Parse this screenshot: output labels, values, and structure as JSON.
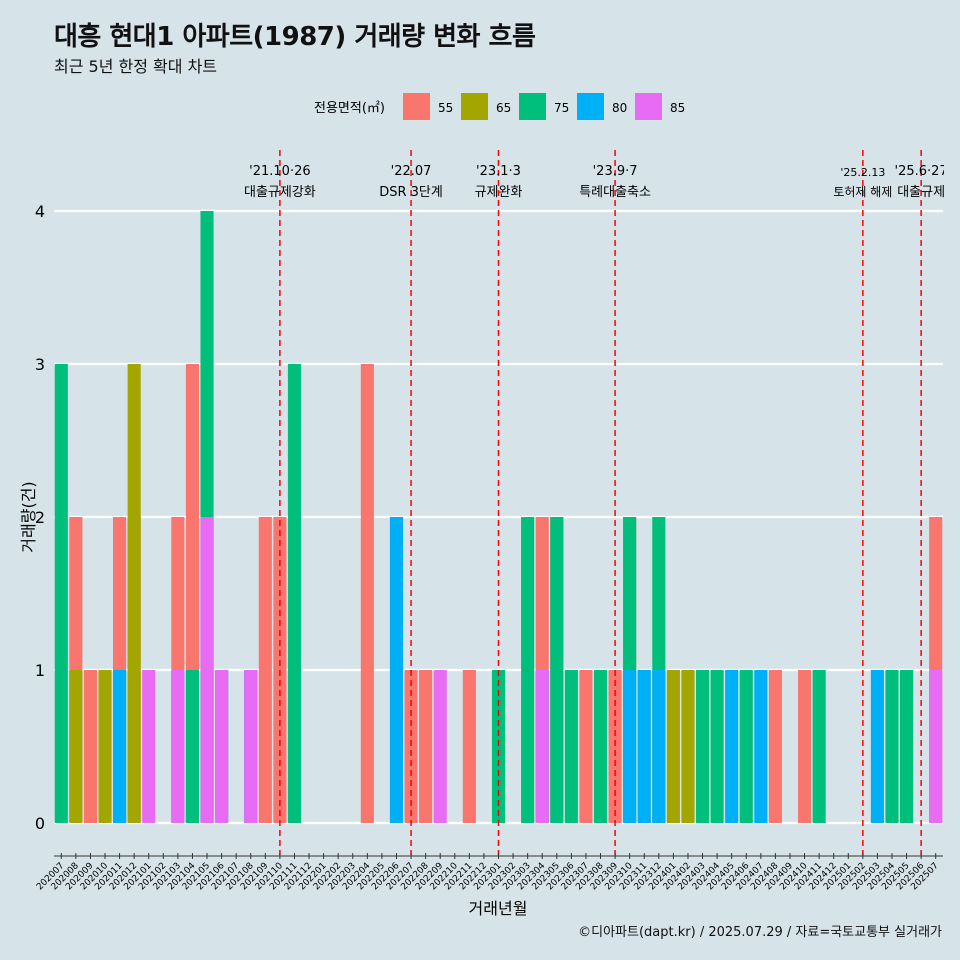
{
  "title": "대흥 현대1 아파트(1987) 거래량 변화 흐름",
  "subtitle": "최근 5년 한정 확대 차트",
  "caption": "©디아파트(dapt.kr) / 2025.07.29 / 자료=국토교통부 실거래가",
  "chart_data": {
    "type": "bar",
    "xlabel": "거래년월",
    "ylabel": "거래량(건)",
    "ylim": [
      0,
      4
    ],
    "yticks": [
      0,
      1,
      2,
      3,
      4
    ],
    "legend": {
      "title": "전용면적(㎡)",
      "position": "top",
      "entries": [
        {
          "name": "55",
          "color": "#f8766d"
        },
        {
          "name": "65",
          "color": "#a3a500"
        },
        {
          "name": "75",
          "color": "#00bf7d"
        },
        {
          "name": "80",
          "color": "#00b0f6"
        },
        {
          "name": "85",
          "color": "#e76bf3"
        }
      ]
    },
    "categories": [
      "202007",
      "202008",
      "202009",
      "202010",
      "202011",
      "202012",
      "202101",
      "202102",
      "202103",
      "202104",
      "202105",
      "202106",
      "202107",
      "202108",
      "202109",
      "202110",
      "202111",
      "202112",
      "202201",
      "202202",
      "202203",
      "202204",
      "202205",
      "202206",
      "202207",
      "202208",
      "202209",
      "202210",
      "202211",
      "202212",
      "202301",
      "202302",
      "202303",
      "202304",
      "202305",
      "202306",
      "202307",
      "202308",
      "202309",
      "202310",
      "202311",
      "202312",
      "202401",
      "202402",
      "202403",
      "202404",
      "202405",
      "202406",
      "202407",
      "202408",
      "202409",
      "202410",
      "202411",
      "202412",
      "202501",
      "202502",
      "202503",
      "202504",
      "202505",
      "202506",
      "202507"
    ],
    "bars": [
      {
        "x": "202007",
        "size": "75",
        "value": 3
      },
      {
        "x": "202008",
        "size": "55",
        "value": 2
      },
      {
        "x": "202008",
        "size": "65",
        "value": 1
      },
      {
        "x": "202009",
        "size": "55",
        "value": 1
      },
      {
        "x": "202010",
        "size": "65",
        "value": 1
      },
      {
        "x": "202011",
        "size": "55",
        "value": 2
      },
      {
        "x": "202011",
        "size": "75",
        "value": 1
      },
      {
        "x": "202011",
        "size": "80",
        "value": 1
      },
      {
        "x": "202012",
        "size": "55",
        "value": 2
      },
      {
        "x": "202012",
        "size": "65",
        "value": 3
      },
      {
        "x": "202101",
        "size": "85",
        "value": 1
      },
      {
        "x": "202103",
        "size": "55",
        "value": 2
      },
      {
        "x": "202103",
        "size": "80",
        "value": 1
      },
      {
        "x": "202103",
        "size": "85",
        "value": 1
      },
      {
        "x": "202104",
        "size": "55",
        "value": 3
      },
      {
        "x": "202104",
        "size": "65",
        "value": 1
      },
      {
        "x": "202104",
        "size": "75",
        "value": 1
      },
      {
        "x": "202105",
        "size": "65",
        "value": 1
      },
      {
        "x": "202105",
        "size": "75",
        "value": 4
      },
      {
        "x": "202105",
        "size": "80",
        "value": 2
      },
      {
        "x": "202105",
        "size": "85",
        "value": 2
      },
      {
        "x": "202106",
        "size": "65",
        "value": 1
      },
      {
        "x": "202106",
        "size": "80",
        "value": 1
      },
      {
        "x": "202106",
        "size": "85",
        "value": 1
      },
      {
        "x": "202108",
        "size": "75",
        "value": 1
      },
      {
        "x": "202108",
        "size": "80",
        "value": 1
      },
      {
        "x": "202108",
        "size": "85",
        "value": 1
      },
      {
        "x": "202109",
        "size": "55",
        "value": 2
      },
      {
        "x": "202110",
        "size": "55",
        "value": 2
      },
      {
        "x": "202111",
        "size": "55",
        "value": 1
      },
      {
        "x": "202111",
        "size": "75",
        "value": 3
      },
      {
        "x": "202204",
        "size": "55",
        "value": 3
      },
      {
        "x": "202206",
        "size": "55",
        "value": 2
      },
      {
        "x": "202206",
        "size": "80",
        "value": 2
      },
      {
        "x": "202207",
        "size": "55",
        "value": 1
      },
      {
        "x": "202208",
        "size": "55",
        "value": 1
      },
      {
        "x": "202209",
        "size": "85",
        "value": 1
      },
      {
        "x": "202211",
        "size": "55",
        "value": 1
      },
      {
        "x": "202301",
        "size": "75",
        "value": 1
      },
      {
        "x": "202303",
        "size": "75",
        "value": 2
      },
      {
        "x": "202304",
        "size": "55",
        "value": 2
      },
      {
        "x": "202304",
        "size": "75",
        "value": 1
      },
      {
        "x": "202304",
        "size": "80",
        "value": 1
      },
      {
        "x": "202304",
        "size": "85",
        "value": 1
      },
      {
        "x": "202305",
        "size": "55",
        "value": 2
      },
      {
        "x": "202305",
        "size": "75",
        "value": 2
      },
      {
        "x": "202306",
        "size": "75",
        "value": 1
      },
      {
        "x": "202307",
        "size": "55",
        "value": 1
      },
      {
        "x": "202308",
        "size": "75",
        "value": 1
      },
      {
        "x": "202309",
        "size": "55",
        "value": 1
      },
      {
        "x": "202310",
        "size": "55",
        "value": 2
      },
      {
        "x": "202310",
        "size": "75",
        "value": 2
      },
      {
        "x": "202310",
        "size": "80",
        "value": 1
      },
      {
        "x": "202311",
        "size": "55",
        "value": 1
      },
      {
        "x": "202311",
        "size": "80",
        "value": 1
      },
      {
        "x": "202312",
        "size": "65",
        "value": 1
      },
      {
        "x": "202312",
        "size": "75",
        "value": 2
      },
      {
        "x": "202312",
        "size": "80",
        "value": 1
      },
      {
        "x": "202401",
        "size": "65",
        "value": 1
      },
      {
        "x": "202402",
        "size": "65",
        "value": 1
      },
      {
        "x": "202403",
        "size": "75",
        "value": 1
      },
      {
        "x": "202404",
        "size": "75",
        "value": 1
      },
      {
        "x": "202405",
        "size": "80",
        "value": 1
      },
      {
        "x": "202406",
        "size": "75",
        "value": 1
      },
      {
        "x": "202407",
        "size": "80",
        "value": 1
      },
      {
        "x": "202408",
        "size": "55",
        "value": 1
      },
      {
        "x": "202410",
        "size": "55",
        "value": 1
      },
      {
        "x": "202411",
        "size": "75",
        "value": 1
      },
      {
        "x": "202503",
        "size": "80",
        "value": 1
      },
      {
        "x": "202504",
        "size": "75",
        "value": 1
      },
      {
        "x": "202505",
        "size": "55",
        "value": 1
      },
      {
        "x": "202505",
        "size": "75",
        "value": 1
      },
      {
        "x": "202507",
        "size": "55",
        "value": 2
      },
      {
        "x": "202507",
        "size": "85",
        "value": 1
      }
    ],
    "annotations": [
      {
        "x": "202110",
        "date": "'21.10·26",
        "label": "대출규제강화"
      },
      {
        "x": "202207",
        "date": "'22.07",
        "label": "DSR 3단계"
      },
      {
        "x": "202301",
        "date": "'23.1·3",
        "label": "규제완화"
      },
      {
        "x": "202309",
        "date": "'23.9·7",
        "label": "특례대출축소"
      },
      {
        "x": "202502",
        "date": "'25.2.13",
        "label": "토허제 해제"
      },
      {
        "x": "202506",
        "date": "'25.6·27",
        "label": "대출규제"
      }
    ]
  }
}
